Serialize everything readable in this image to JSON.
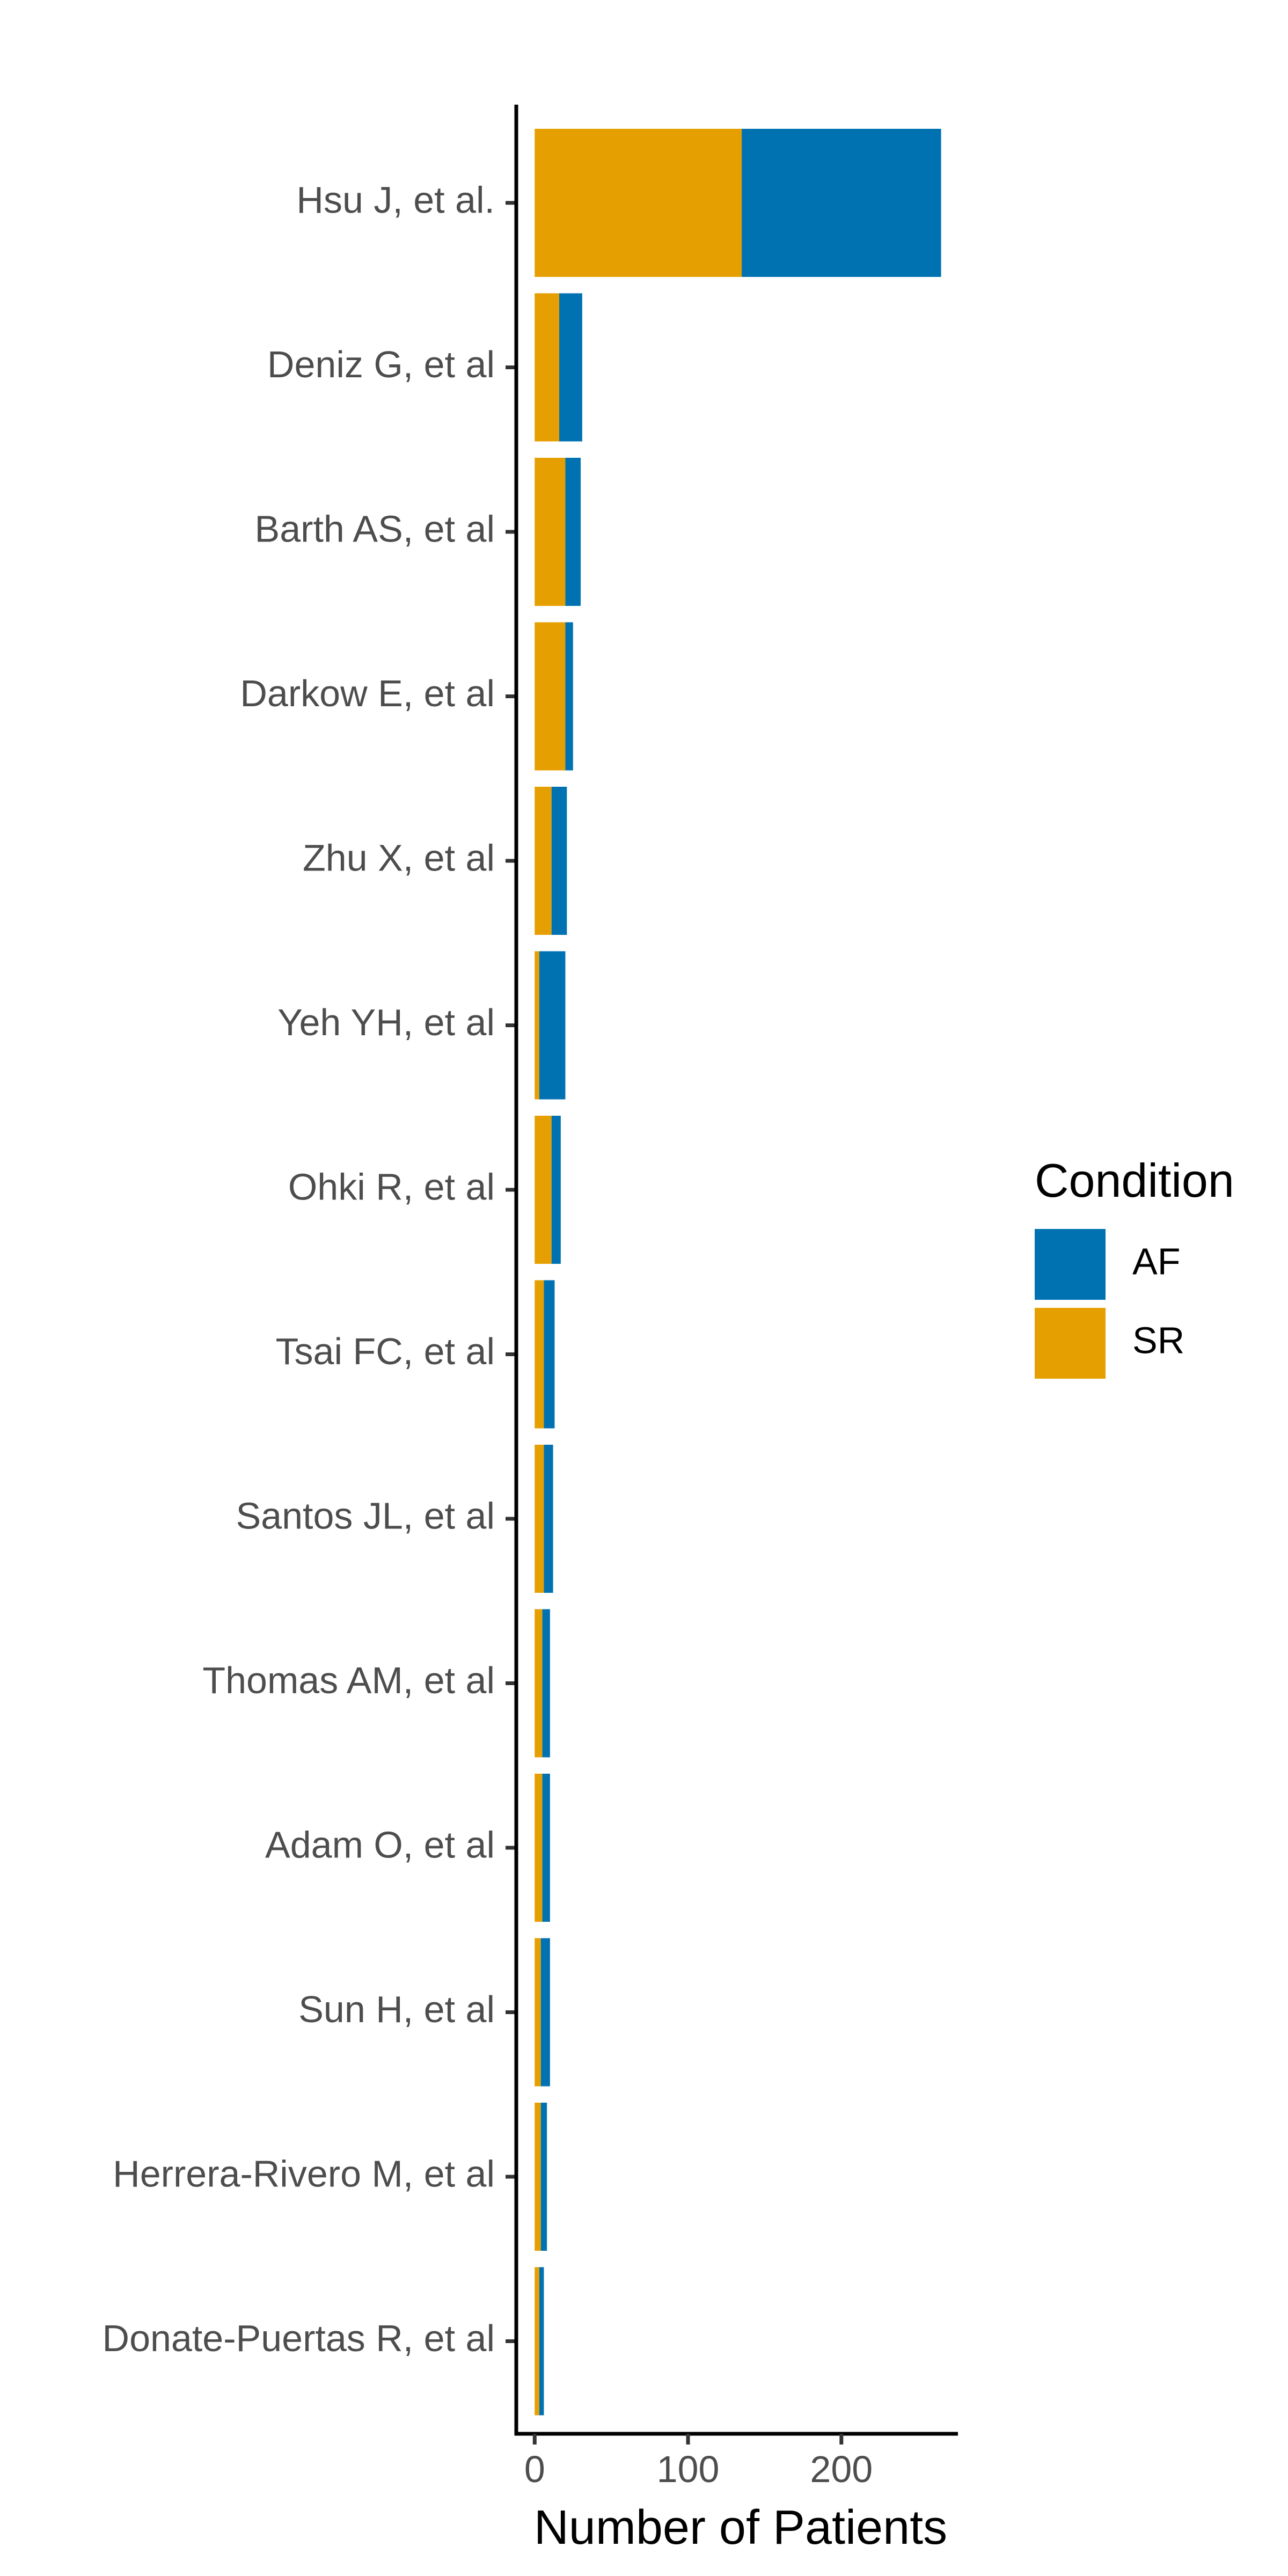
{
  "chart_data": {
    "type": "bar",
    "orientation": "horizontal",
    "stacked": true,
    "title": "",
    "xlabel": "Number of Patients",
    "ylabel": "",
    "xlim": [
      -12,
      276
    ],
    "xticks": [
      0,
      100,
      200
    ],
    "grid": false,
    "legend_position": "right",
    "categories": [
      "Hsu J, et al.",
      "Deniz G, et al",
      "Barth AS, et al",
      "Darkow E, et al",
      "Zhu X, et al",
      "Yeh YH, et al",
      "Ohki R, et al",
      "Tsai FC, et al",
      "Santos JL, et al",
      "Thomas AM, et al",
      "Adam O, et al",
      "Sun H, et al",
      "Herrera-Rivero M, et al",
      "Donate-Puertas R, et al"
    ],
    "series": [
      {
        "name": "SR",
        "color": "#E69F00",
        "values": [
          135,
          16,
          20,
          20,
          11,
          3,
          11,
          6,
          6,
          5,
          5,
          4,
          4,
          3
        ]
      },
      {
        "name": "AF",
        "color": "#0072B2",
        "values": [
          130,
          15,
          10,
          5,
          10,
          17,
          6,
          7,
          6,
          5,
          5,
          6,
          4,
          3
        ]
      }
    ]
  },
  "legend": {
    "title": "Condition",
    "items": [
      {
        "label": "AF",
        "color": "#0072B2"
      },
      {
        "label": "SR",
        "color": "#E69F00"
      }
    ]
  }
}
